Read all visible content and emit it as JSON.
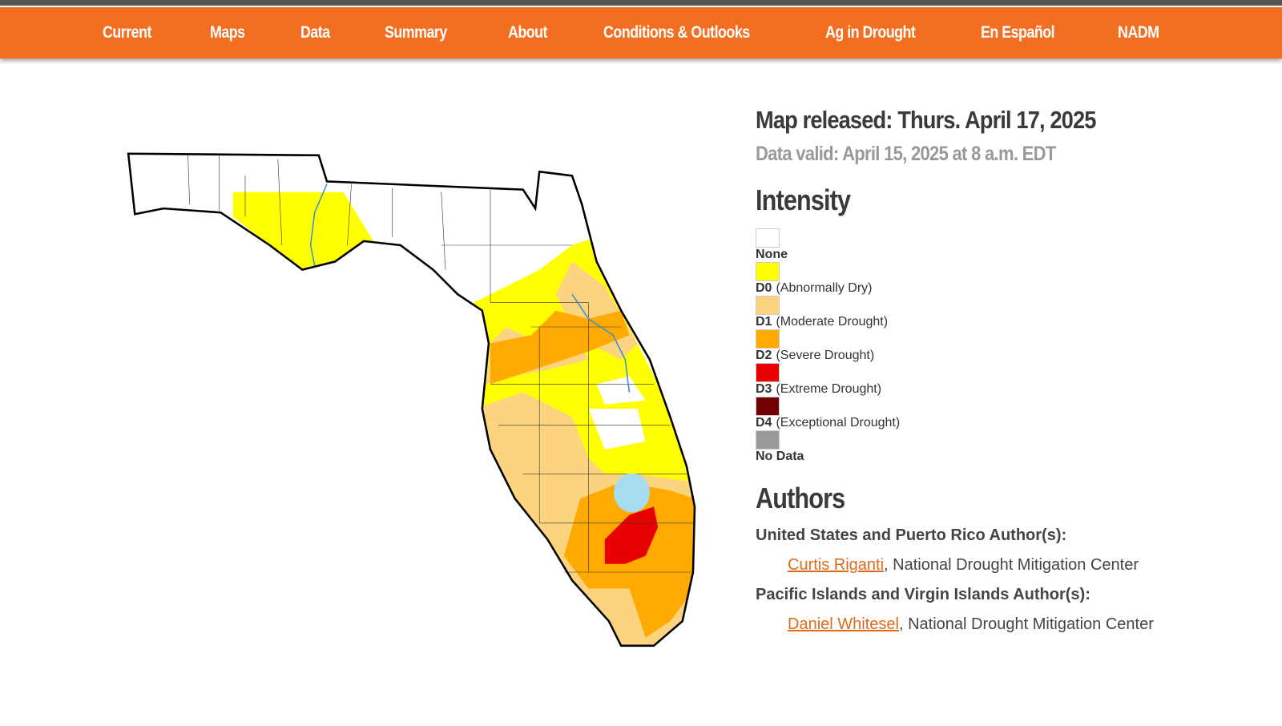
{
  "nav": [
    "Current",
    "Maps",
    "Data",
    "Summary",
    "About",
    "Conditions & Outlooks",
    "Ag in Drought",
    "En Español",
    "NADM"
  ],
  "info": {
    "released": "Map released: Thurs. April 17, 2025",
    "valid": "Data valid: April 15, 2025 at 8 a.m. EDT"
  },
  "intensity": {
    "title": "Intensity",
    "items": [
      {
        "code": "None",
        "color": "#ffffff"
      },
      {
        "code": "D0",
        "label": "(Abnormally Dry)",
        "color": "#ffff00"
      },
      {
        "code": "D1",
        "label": "(Moderate Drought)",
        "color": "#fcd37f"
      },
      {
        "code": "D2",
        "label": "(Severe Drought)",
        "color": "#ffaa00"
      },
      {
        "code": "D3",
        "label": "(Extreme Drought)",
        "color": "#e60000"
      },
      {
        "code": "D4",
        "label": "(Exceptional Drought)",
        "color": "#730000"
      },
      {
        "code": "No Data",
        "color": "#999999"
      }
    ]
  },
  "authors": {
    "title": "Authors",
    "groups": [
      {
        "heading": "United States and Puerto Rico Author(s):",
        "name": "Curtis Riganti",
        "affiliation": ", National Drought Mitigation Center"
      },
      {
        "heading": "Pacific Islands and Virgin Islands Author(s):",
        "name": "Daniel Whitesel",
        "affiliation": ", National Drought Mitigation Center"
      }
    ]
  }
}
